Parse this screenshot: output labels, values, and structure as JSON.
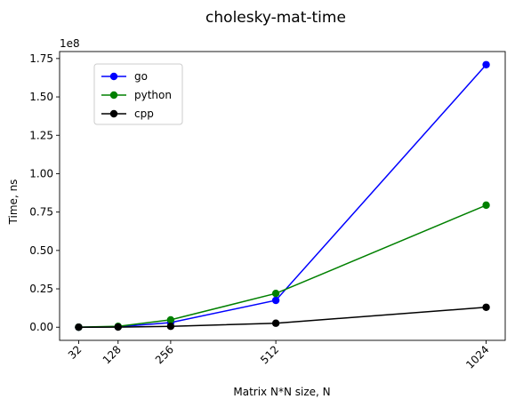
{
  "chart_data": {
    "type": "line",
    "title": "cholesky-mat-time",
    "xlabel": "Matrix N*N size, N",
    "ylabel": "Time, ns",
    "y_scale_note": "1e8",
    "x": [
      32,
      128,
      256,
      512,
      1024
    ],
    "x_tick_labels": [
      "32",
      "128",
      "256",
      "512",
      "1024"
    ],
    "y_ticks": [
      0,
      0.25,
      0.5,
      0.75,
      1.0,
      1.25,
      1.5,
      1.75
    ],
    "y_tick_labels": [
      "0.00",
      "0.25",
      "0.50",
      "0.75",
      "1.00",
      "1.25",
      "1.50",
      "1.75"
    ],
    "xlim": [
      -14.4,
      1070.4
    ],
    "ylim": [
      -0.0855,
      1.7955
    ],
    "y_units_multiplier": 100000000,
    "series": [
      {
        "name": "go",
        "color": "#0000ff",
        "values": [
          0.0003,
          0.003,
          0.03,
          0.175,
          1.71
        ]
      },
      {
        "name": "python",
        "color": "#008000",
        "values": [
          0.0005,
          0.006,
          0.048,
          0.22,
          0.795
        ]
      },
      {
        "name": "cpp",
        "color": "#000000",
        "values": [
          0.0001,
          0.001,
          0.006,
          0.026,
          0.13
        ]
      }
    ],
    "legend_position": "upper-left",
    "grid": false,
    "marker": "circle"
  }
}
